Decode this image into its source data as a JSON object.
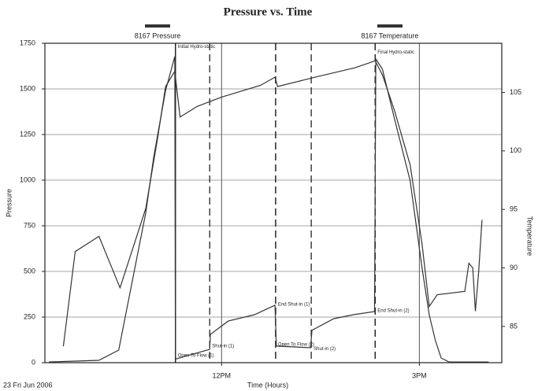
{
  "chart_data": {
    "type": "line",
    "title": "Pressure vs. Time",
    "x_label": "Time (Hours)",
    "y_label": "Pressure",
    "y2_label": "Temperature",
    "date_note": "23 Fri Jun 2006",
    "xlim": [
      9.32,
      16.25
    ],
    "xticks": [
      {
        "value": 12,
        "label": "12PM"
      },
      {
        "value": 15,
        "label": "3PM"
      }
    ],
    "ylim": [
      0,
      1750
    ],
    "yticks": [
      0,
      250,
      500,
      750,
      1000,
      1250,
      1500,
      1750
    ],
    "y2lim": [
      81.9,
      109.2
    ],
    "y2ticks": [
      85,
      90,
      95,
      100,
      105
    ],
    "grid": true,
    "series": [
      {
        "name": "8167 Pressure",
        "color": "#333333",
        "axis": "y",
        "x": [
          9.38,
          10.14,
          10.44,
          10.85,
          10.97,
          11.15,
          11.29,
          11.3,
          11.82,
          11.83,
          12.1,
          12.5,
          12.81,
          12.83,
          13.35,
          13.37,
          13.7,
          14.0,
          14.32,
          14.34,
          14.44,
          14.62,
          14.86,
          15.04,
          15.15,
          15.24,
          15.33,
          15.45,
          16.05
        ],
        "values": [
          4,
          13,
          69,
          823,
          1125,
          1491,
          1677,
          20,
          73,
          155,
          228,
          263,
          315,
          91,
          82,
          177,
          241,
          263,
          280,
          1664,
          1608,
          1340,
          996,
          522,
          263,
          125,
          26,
          4,
          4
        ]
      },
      {
        "name": "8167 Temperature",
        "color": "#333333",
        "axis": "y2",
        "x": [
          9.6,
          9.78,
          10.14,
          10.46,
          10.85,
          11.03,
          11.15,
          11.29,
          11.37,
          11.63,
          12.0,
          12.59,
          12.81,
          12.85,
          13.42,
          14.02,
          14.33,
          14.44,
          14.62,
          14.86,
          15.04,
          15.15,
          15.27,
          15.69,
          15.75,
          15.81,
          15.85,
          15.9,
          15.95
        ],
        "values": [
          83.3,
          91.4,
          92.7,
          88.3,
          95.1,
          101.1,
          105.5,
          106.8,
          102.9,
          103.8,
          104.6,
          105.6,
          106.3,
          105.5,
          106.3,
          107.1,
          107.7,
          106.5,
          103.5,
          98.8,
          92.1,
          86.7,
          87.7,
          88.0,
          90.4,
          90.0,
          86.3,
          89.7,
          94.1
        ]
      }
    ],
    "events": [
      {
        "label": "Initial Hydro-static",
        "x": 11.3,
        "y": 1730,
        "line": "solid"
      },
      {
        "label": "Open To Flow (1)",
        "x": 11.3,
        "y": 40,
        "line": "solid"
      },
      {
        "label": "Shut-in (1)",
        "x": 11.82,
        "y": 90,
        "line": "dashed"
      },
      {
        "label": "End Shut-in (1)",
        "x": 12.82,
        "y": 320,
        "line": "dashed"
      },
      {
        "label": "Open To Flow (2)",
        "x": 12.82,
        "y": 100,
        "line": "dashed"
      },
      {
        "label": "Shut-in (2)",
        "x": 13.36,
        "y": 75,
        "line": "dashed"
      },
      {
        "label": "End Shut-in (2)",
        "x": 14.33,
        "y": 285,
        "line": "dashed"
      },
      {
        "label": "Final Hydro-static",
        "x": 14.33,
        "y": 1700,
        "line": "dashed"
      }
    ]
  }
}
